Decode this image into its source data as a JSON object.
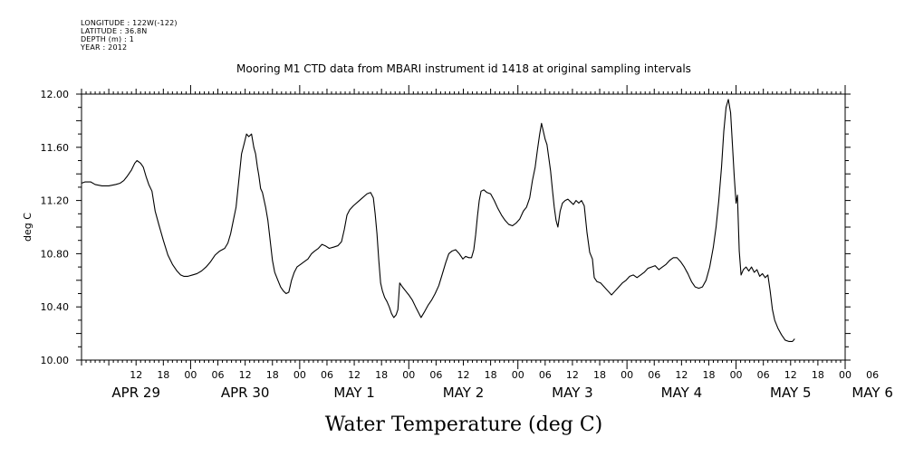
{
  "header": {
    "longitude": "LONGITUDE : 122W(-122)",
    "latitude": "LATITUDE : 36.8N",
    "depth": "DEPTH (m) : 1",
    "year": "YEAR : 2012"
  },
  "chart_data": {
    "type": "line",
    "title": "Mooring M1 CTD data from MBARI instrument id 1418 at original sampling intervals",
    "xlabel": "Water Temperature (deg C)",
    "ylabel": "deg C",
    "ylim": [
      10.0,
      12.0
    ],
    "yticks": [
      "10.00",
      "10.40",
      "10.80",
      "11.20",
      "11.60",
      "12.00"
    ],
    "xlim_hours": [
      -6,
      162
    ],
    "hour_tick_labels": [
      {
        "h": 6,
        "label": "12"
      },
      {
        "h": 12,
        "label": "18"
      },
      {
        "h": 18,
        "label": "00"
      },
      {
        "h": 24,
        "label": "06"
      },
      {
        "h": 30,
        "label": "12"
      },
      {
        "h": 36,
        "label": "18"
      },
      {
        "h": 42,
        "label": "00"
      },
      {
        "h": 48,
        "label": "06"
      },
      {
        "h": 54,
        "label": "12"
      },
      {
        "h": 60,
        "label": "18"
      },
      {
        "h": 66,
        "label": "00"
      },
      {
        "h": 72,
        "label": "06"
      },
      {
        "h": 78,
        "label": "12"
      },
      {
        "h": 84,
        "label": "18"
      },
      {
        "h": 90,
        "label": "00"
      },
      {
        "h": 96,
        "label": "06"
      },
      {
        "h": 102,
        "label": "12"
      },
      {
        "h": 108,
        "label": "18"
      },
      {
        "h": 114,
        "label": "00"
      },
      {
        "h": 120,
        "label": "06"
      },
      {
        "h": 126,
        "label": "12"
      },
      {
        "h": 132,
        "label": "18"
      },
      {
        "h": 138,
        "label": "00"
      },
      {
        "h": 144,
        "label": "06"
      },
      {
        "h": 150,
        "label": "12"
      },
      {
        "h": 156,
        "label": "18"
      },
      {
        "h": 162,
        "label": "00"
      },
      {
        "h": 168,
        "label": "06"
      }
    ],
    "day_labels": [
      {
        "h": 6,
        "label": "APR 29"
      },
      {
        "h": 30,
        "label": "APR 30"
      },
      {
        "h": 54,
        "label": "MAY  1"
      },
      {
        "h": 78,
        "label": "MAY  2"
      },
      {
        "h": 102,
        "label": "MAY  3"
      },
      {
        "h": 126,
        "label": "MAY  4"
      },
      {
        "h": 150,
        "label": "MAY  5"
      },
      {
        "h": 168,
        "label": "MAY  6"
      }
    ],
    "series": [
      {
        "values": [
          [
            -6.0,
            11.33
          ],
          [
            -5.2,
            11.34
          ],
          [
            -4.0,
            11.34
          ],
          [
            -3.0,
            11.32
          ],
          [
            -1.5,
            11.31
          ],
          [
            0.0,
            11.31
          ],
          [
            1.5,
            11.32
          ],
          [
            2.5,
            11.33
          ],
          [
            3.3,
            11.35
          ],
          [
            4.0,
            11.38
          ],
          [
            5.0,
            11.43
          ],
          [
            5.7,
            11.48
          ],
          [
            6.2,
            11.5
          ],
          [
            7.0,
            11.48
          ],
          [
            7.6,
            11.45
          ],
          [
            8.2,
            11.38
          ],
          [
            8.8,
            11.32
          ],
          [
            9.5,
            11.27
          ],
          [
            10.2,
            11.12
          ],
          [
            11.0,
            11.02
          ],
          [
            12.0,
            10.9
          ],
          [
            13.0,
            10.79
          ],
          [
            14.0,
            10.72
          ],
          [
            15.0,
            10.67
          ],
          [
            15.8,
            10.64
          ],
          [
            16.5,
            10.63
          ],
          [
            17.4,
            10.63
          ],
          [
            18.4,
            10.64
          ],
          [
            19.4,
            10.65
          ],
          [
            20.4,
            10.67
          ],
          [
            21.4,
            10.7
          ],
          [
            22.4,
            10.74
          ],
          [
            23.4,
            10.79
          ],
          [
            24.4,
            10.82
          ],
          [
            25.5,
            10.84
          ],
          [
            26.2,
            10.88
          ],
          [
            26.8,
            10.95
          ],
          [
            27.4,
            11.05
          ],
          [
            28.0,
            11.15
          ],
          [
            28.6,
            11.35
          ],
          [
            29.2,
            11.55
          ],
          [
            29.8,
            11.63
          ],
          [
            30.3,
            11.7
          ],
          [
            30.8,
            11.68
          ],
          [
            31.4,
            11.7
          ],
          [
            31.9,
            11.6
          ],
          [
            32.3,
            11.55
          ],
          [
            32.7,
            11.45
          ],
          [
            33.0,
            11.39
          ],
          [
            33.4,
            11.29
          ],
          [
            33.8,
            11.26
          ],
          [
            34.5,
            11.15
          ],
          [
            35.0,
            11.05
          ],
          [
            35.5,
            10.9
          ],
          [
            36.0,
            10.75
          ],
          [
            36.5,
            10.66
          ],
          [
            37.2,
            10.6
          ],
          [
            37.8,
            10.55
          ],
          [
            38.4,
            10.52
          ],
          [
            39.0,
            10.5
          ],
          [
            39.6,
            10.51
          ],
          [
            40.2,
            10.6
          ],
          [
            40.8,
            10.66
          ],
          [
            41.4,
            10.7
          ],
          [
            42.2,
            10.72
          ],
          [
            43.0,
            10.74
          ],
          [
            43.8,
            10.76
          ],
          [
            44.6,
            10.8
          ],
          [
            45.3,
            10.82
          ],
          [
            46.1,
            10.84
          ],
          [
            46.9,
            10.87
          ],
          [
            47.6,
            10.86
          ],
          [
            48.5,
            10.84
          ],
          [
            49.5,
            10.85
          ],
          [
            50.4,
            10.86
          ],
          [
            51.2,
            10.89
          ],
          [
            51.8,
            10.98
          ],
          [
            52.4,
            11.09
          ],
          [
            53.0,
            11.13
          ],
          [
            53.8,
            11.16
          ],
          [
            54.8,
            11.19
          ],
          [
            55.8,
            11.22
          ],
          [
            56.8,
            11.25
          ],
          [
            57.6,
            11.26
          ],
          [
            58.2,
            11.22
          ],
          [
            58.6,
            11.1
          ],
          [
            59.0,
            10.95
          ],
          [
            59.4,
            10.75
          ],
          [
            59.8,
            10.58
          ],
          [
            60.2,
            10.52
          ],
          [
            60.7,
            10.47
          ],
          [
            61.2,
            10.44
          ],
          [
            61.7,
            10.4
          ],
          [
            62.2,
            10.35
          ],
          [
            62.7,
            10.32
          ],
          [
            63.2,
            10.34
          ],
          [
            63.6,
            10.38
          ],
          [
            64.0,
            10.58
          ],
          [
            64.6,
            10.55
          ],
          [
            65.3,
            10.52
          ],
          [
            66.0,
            10.49
          ],
          [
            66.8,
            10.45
          ],
          [
            67.5,
            10.4
          ],
          [
            68.1,
            10.36
          ],
          [
            68.7,
            10.32
          ],
          [
            69.4,
            10.36
          ],
          [
            70.2,
            10.41
          ],
          [
            71.0,
            10.45
          ],
          [
            71.8,
            10.5
          ],
          [
            72.6,
            10.56
          ],
          [
            73.4,
            10.65
          ],
          [
            74.1,
            10.73
          ],
          [
            74.8,
            10.8
          ],
          [
            75.5,
            10.82
          ],
          [
            76.3,
            10.83
          ],
          [
            77.1,
            10.8
          ],
          [
            77.9,
            10.76
          ],
          [
            78.5,
            10.78
          ],
          [
            79.2,
            10.77
          ],
          [
            79.8,
            10.77
          ],
          [
            80.3,
            10.83
          ],
          [
            80.7,
            10.94
          ],
          [
            81.1,
            11.08
          ],
          [
            81.5,
            11.2
          ],
          [
            81.9,
            11.27
          ],
          [
            82.5,
            11.28
          ],
          [
            83.2,
            11.26
          ],
          [
            84.0,
            11.25
          ],
          [
            84.8,
            11.2
          ],
          [
            85.6,
            11.14
          ],
          [
            86.4,
            11.09
          ],
          [
            87.2,
            11.05
          ],
          [
            88.0,
            11.02
          ],
          [
            88.8,
            11.01
          ],
          [
            89.6,
            11.03
          ],
          [
            90.4,
            11.06
          ],
          [
            91.2,
            11.12
          ],
          [
            91.9,
            11.15
          ],
          [
            92.6,
            11.22
          ],
          [
            93.2,
            11.35
          ],
          [
            93.8,
            11.45
          ],
          [
            94.3,
            11.58
          ],
          [
            94.8,
            11.7
          ],
          [
            95.2,
            11.78
          ],
          [
            95.6,
            11.72
          ],
          [
            96.0,
            11.66
          ],
          [
            96.4,
            11.62
          ],
          [
            96.8,
            11.52
          ],
          [
            97.2,
            11.42
          ],
          [
            97.6,
            11.28
          ],
          [
            98.0,
            11.15
          ],
          [
            98.4,
            11.05
          ],
          [
            98.8,
            11.0
          ],
          [
            99.3,
            11.12
          ],
          [
            99.8,
            11.18
          ],
          [
            100.4,
            11.2
          ],
          [
            101.0,
            11.21
          ],
          [
            101.6,
            11.19
          ],
          [
            102.2,
            11.17
          ],
          [
            102.8,
            11.2
          ],
          [
            103.4,
            11.18
          ],
          [
            104.0,
            11.2
          ],
          [
            104.6,
            11.16
          ],
          [
            105.2,
            10.96
          ],
          [
            105.8,
            10.81
          ],
          [
            106.4,
            10.76
          ],
          [
            106.8,
            10.62
          ],
          [
            107.4,
            10.59
          ],
          [
            108.2,
            10.58
          ],
          [
            109.0,
            10.55
          ],
          [
            109.8,
            10.52
          ],
          [
            110.6,
            10.49
          ],
          [
            111.4,
            10.52
          ],
          [
            112.2,
            10.55
          ],
          [
            113.0,
            10.58
          ],
          [
            113.8,
            10.6
          ],
          [
            114.6,
            10.63
          ],
          [
            115.4,
            10.64
          ],
          [
            116.2,
            10.62
          ],
          [
            117.0,
            10.64
          ],
          [
            117.8,
            10.66
          ],
          [
            118.6,
            10.69
          ],
          [
            119.4,
            10.7
          ],
          [
            120.2,
            10.71
          ],
          [
            121.0,
            10.68
          ],
          [
            121.8,
            10.7
          ],
          [
            122.6,
            10.72
          ],
          [
            123.4,
            10.75
          ],
          [
            124.2,
            10.77
          ],
          [
            125.0,
            10.77
          ],
          [
            125.8,
            10.74
          ],
          [
            126.6,
            10.7
          ],
          [
            127.4,
            10.65
          ],
          [
            128.2,
            10.59
          ],
          [
            129.0,
            10.55
          ],
          [
            129.8,
            10.54
          ],
          [
            130.6,
            10.55
          ],
          [
            131.4,
            10.6
          ],
          [
            132.2,
            10.7
          ],
          [
            133.0,
            10.85
          ],
          [
            133.6,
            11.0
          ],
          [
            134.2,
            11.2
          ],
          [
            134.8,
            11.45
          ],
          [
            135.3,
            11.72
          ],
          [
            135.8,
            11.9
          ],
          [
            136.3,
            11.96
          ],
          [
            136.8,
            11.86
          ],
          [
            137.2,
            11.62
          ],
          [
            137.6,
            11.38
          ],
          [
            138.0,
            11.18
          ],
          [
            138.3,
            11.24
          ],
          [
            138.7,
            10.82
          ],
          [
            139.1,
            10.64
          ],
          [
            139.6,
            10.68
          ],
          [
            140.2,
            10.7
          ],
          [
            140.8,
            10.67
          ],
          [
            141.4,
            10.7
          ],
          [
            142.0,
            10.66
          ],
          [
            142.6,
            10.68
          ],
          [
            143.2,
            10.63
          ],
          [
            143.8,
            10.65
          ],
          [
            144.4,
            10.62
          ],
          [
            145.0,
            10.64
          ],
          [
            145.5,
            10.52
          ],
          [
            146.0,
            10.38
          ],
          [
            146.5,
            10.3
          ],
          [
            147.2,
            10.24
          ],
          [
            148.0,
            10.19
          ],
          [
            148.8,
            10.15
          ],
          [
            149.6,
            10.14
          ],
          [
            150.4,
            10.14
          ],
          [
            150.9,
            10.16
          ]
        ]
      }
    ]
  }
}
